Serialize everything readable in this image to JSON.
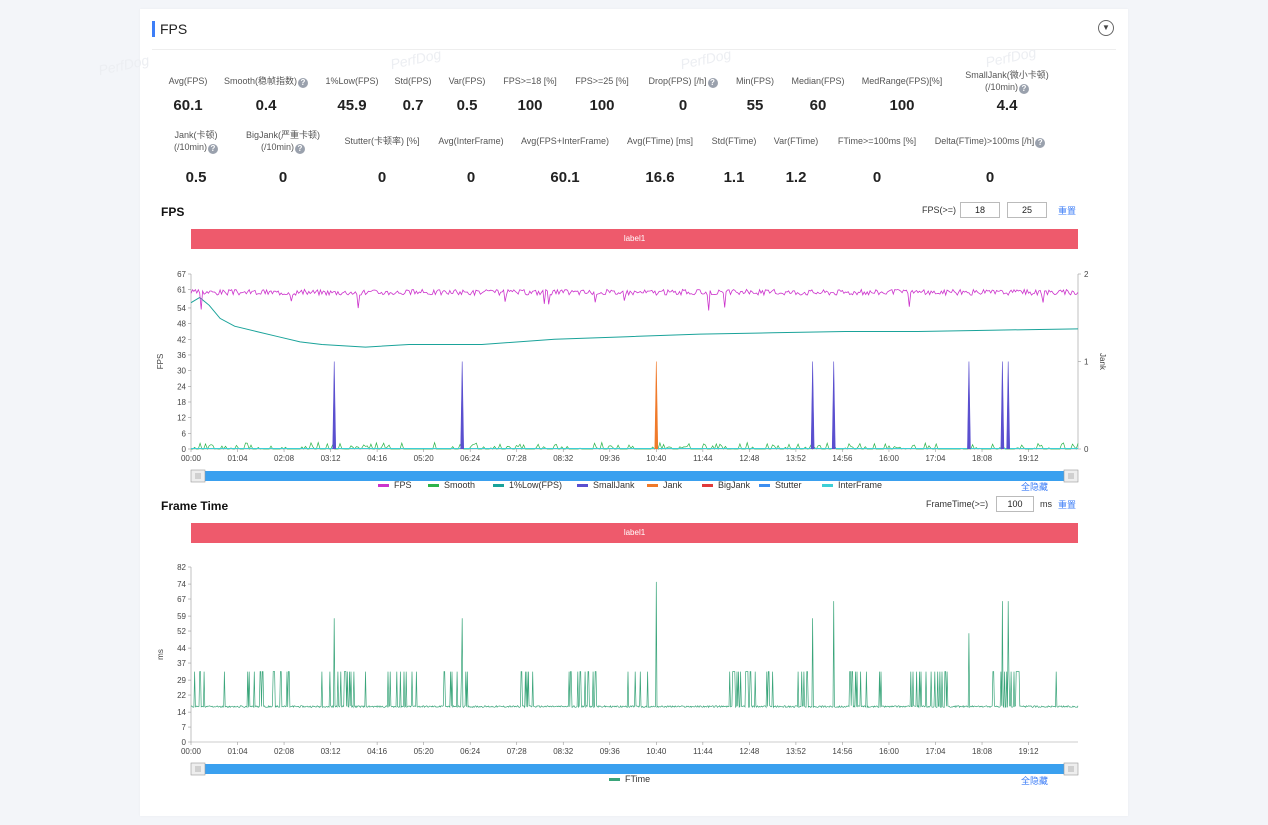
{
  "card": {
    "title": "FPS",
    "collapse_icon": "chevron-down-icon",
    "watermark": "PerfDog"
  },
  "metrics_row1": [
    {
      "label": "Avg(FPS)",
      "value": "60.1",
      "help": false
    },
    {
      "label": "Smooth(稳帧指数)",
      "value": "0.4",
      "help": true
    },
    {
      "label": "1%Low(FPS)",
      "value": "45.9",
      "help": false
    },
    {
      "label": "Std(FPS)",
      "value": "0.7",
      "help": false
    },
    {
      "label": "Var(FPS)",
      "value": "0.5",
      "help": false
    },
    {
      "label": "FPS>=18 [%]",
      "value": "100",
      "help": false
    },
    {
      "label": "FPS>=25 [%]",
      "value": "100",
      "help": false
    },
    {
      "label": "Drop(FPS) [/h]",
      "value": "0",
      "help": true
    },
    {
      "label": "Min(FPS)",
      "value": "55",
      "help": false
    },
    {
      "label": "Median(FPS)",
      "value": "60",
      "help": false
    },
    {
      "label": "MedRange(FPS)[%]",
      "value": "100",
      "help": false
    },
    {
      "label": "SmallJank(微小卡顿)",
      "label2": "(/10min)",
      "value": "4.4",
      "help": true
    }
  ],
  "metrics_row2": [
    {
      "label": "Jank(卡顿)",
      "label2": "(/10min)",
      "value": "0.5",
      "help": true
    },
    {
      "label": "BigJank(严重卡顿)",
      "label2": "(/10min)",
      "value": "0",
      "help": true
    },
    {
      "label": "Stutter(卡顿率) [%]",
      "value": "0",
      "help": false
    },
    {
      "label": "Avg(InterFrame)",
      "value": "0",
      "help": false
    },
    {
      "label": "Avg(FPS+InterFrame)",
      "value": "60.1",
      "help": false
    },
    {
      "label": "Avg(FTime) [ms]",
      "value": "16.6",
      "help": false
    },
    {
      "label": "Std(FTime)",
      "value": "1.1",
      "help": false
    },
    {
      "label": "Var(FTime)",
      "value": "1.2",
      "help": false
    },
    {
      "label": "FTime>=100ms [%]",
      "value": "0",
      "help": false
    },
    {
      "label": "Delta(FTime)>100ms [/h]",
      "value": "0",
      "help": true
    }
  ],
  "fps_section": {
    "title": "FPS",
    "threshold_label": "FPS(>=)",
    "threshold_1": "18",
    "threshold_2": "25",
    "reset_label": "重置",
    "label_bar": "label1",
    "toggle_all": "全隐藏",
    "legend": [
      {
        "name": "FPS",
        "color": "#cc33cc"
      },
      {
        "name": "Smooth",
        "color": "#2db34a"
      },
      {
        "name": "1%Low(FPS)",
        "color": "#1aa39a"
      },
      {
        "name": "SmallJank",
        "color": "#5a4fcf"
      },
      {
        "name": "Jank",
        "color": "#f07a2a"
      },
      {
        "name": "BigJank",
        "color": "#e03a3a"
      },
      {
        "name": "Stutter",
        "color": "#3d8ef0"
      },
      {
        "name": "InterFrame",
        "color": "#3dcfd6"
      }
    ]
  },
  "frametime_section": {
    "title": "Frame Time",
    "threshold_label": "FrameTime(>=)",
    "threshold_value": "100",
    "threshold_unit": "ms",
    "reset_label": "重置",
    "label_bar": "label1",
    "toggle_all": "全隐藏",
    "legend": [
      {
        "name": "FTime",
        "color": "#3aa57a"
      }
    ]
  },
  "chart_data": [
    {
      "type": "line",
      "title": "FPS",
      "ylabel": "FPS",
      "y2label": "Jank",
      "ylim": [
        0,
        67
      ],
      "y2lim": [
        0,
        2
      ],
      "yticks": [
        "0",
        "6",
        "12",
        "18",
        "24",
        "30",
        "36",
        "42",
        "48",
        "54",
        "61",
        "67"
      ],
      "y2ticks": [
        "0",
        "1",
        "2"
      ],
      "xticks": [
        "00:00",
        "01:04",
        "02:08",
        "03:12",
        "04:16",
        "05:20",
        "06:24",
        "07:28",
        "08:32",
        "09:36",
        "10:40",
        "11:44",
        "12:48",
        "13:52",
        "14:56",
        "16:00",
        "17:04",
        "18:08",
        "19:12"
      ],
      "x_range_seconds": [
        0,
        1220
      ],
      "series": [
        {
          "name": "FPS",
          "color": "#cc33cc",
          "approx": 60
        },
        {
          "name": "1%Low(FPS)",
          "color": "#1aa39a",
          "points": [
            [
              0,
              56
            ],
            [
              12,
              58
            ],
            [
              25,
              55
            ],
            [
              40,
              50
            ],
            [
              60,
              47
            ],
            [
              90,
              45
            ],
            [
              120,
              43
            ],
            [
              150,
              41
            ],
            [
              180,
              40
            ],
            [
              240,
              39
            ],
            [
              300,
              40
            ],
            [
              400,
              40
            ],
            [
              500,
              42
            ],
            [
              600,
              43
            ],
            [
              700,
              44
            ],
            [
              800,
              44.5
            ],
            [
              900,
              45
            ],
            [
              1000,
              45
            ],
            [
              1100,
              45.5
            ],
            [
              1220,
              46
            ]
          ]
        },
        {
          "name": "SmallJank",
          "color": "#5a4fcf",
          "axis": "y2",
          "spikes_x": [
            197,
            373,
            855,
            884,
            1070,
            1116,
            1124
          ]
        },
        {
          "name": "Jank",
          "color": "#f07a2a",
          "axis": "y2",
          "spikes_x": [
            640
          ]
        },
        {
          "name": "BigJank",
          "color": "#e03a3a",
          "axis": "y2",
          "spikes_x": []
        }
      ]
    },
    {
      "type": "line",
      "title": "Frame Time",
      "ylabel": "ms",
      "ylim": [
        0,
        82
      ],
      "yticks": [
        "0",
        "7",
        "14",
        "22",
        "29",
        "37",
        "44",
        "52",
        "59",
        "67",
        "74",
        "82"
      ],
      "xticks": [
        "00:00",
        "01:04",
        "02:08",
        "03:12",
        "04:16",
        "05:20",
        "06:24",
        "07:28",
        "08:32",
        "09:36",
        "10:40",
        "11:44",
        "12:48",
        "13:52",
        "14:56",
        "16:00",
        "17:04",
        "18:08",
        "19:12"
      ],
      "x_range_seconds": [
        0,
        1220
      ],
      "series": [
        {
          "name": "FTime",
          "color": "#3aa57a",
          "baseline": 16.6,
          "tall_spikes": [
            [
              197,
              58
            ],
            [
              373,
              58
            ],
            [
              640,
              75
            ],
            [
              855,
              58
            ],
            [
              884,
              66
            ],
            [
              1070,
              51
            ],
            [
              1116,
              66
            ],
            [
              1124,
              66
            ]
          ],
          "spike_clusters": [
            [
              5,
              25
            ],
            [
              40,
              60
            ],
            [
              70,
              100
            ],
            [
              110,
              140
            ],
            [
              180,
              240
            ],
            [
              270,
              310
            ],
            [
              340,
              380
            ],
            [
              450,
              470
            ],
            [
              520,
              560
            ],
            [
              600,
              630
            ],
            [
              740,
              800
            ],
            [
              830,
              870
            ],
            [
              900,
              950
            ],
            [
              990,
              1050
            ],
            [
              1100,
              1140
            ],
            [
              1190,
              1200
            ]
          ]
        }
      ]
    }
  ]
}
